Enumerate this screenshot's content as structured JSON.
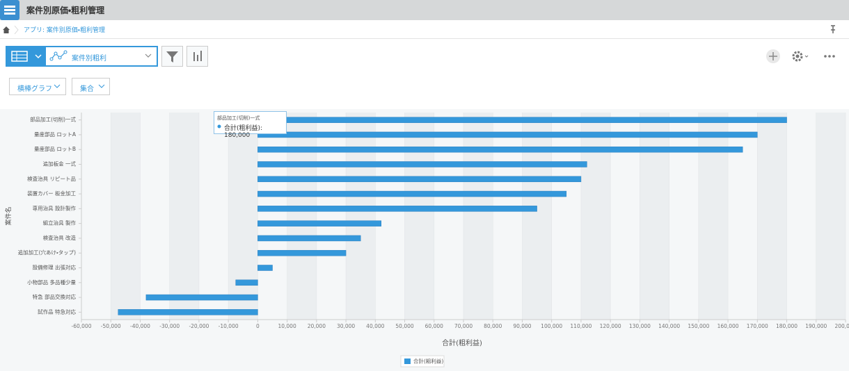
{
  "header": {
    "title": "案件別原価・粗利管理"
  },
  "breadcrumb": {
    "text": "アプリ: 案件別原価・粗利管理"
  },
  "toolbar": {
    "view_name": "案件別粗利",
    "chart_type": "横棒グラフ",
    "aggregation": "集合"
  },
  "tooltip": {
    "category": "部品加工(切削)一式",
    "text": "合計(粗利益): 180,000"
  },
  "chart_data": {
    "type": "bar",
    "orientation": "horizontal",
    "xlabel": "合計(粗利益)",
    "ylabel": "案件名",
    "categories": [
      "部品加工(切削)一式",
      "量産部品 ロットA",
      "量産部品 ロットB",
      "追加板金 一式",
      "検査治具 リピート品",
      "装置カバー 板金加工",
      "専用治具 設計製作",
      "組立治具 製作",
      "検査治具 改造",
      "追加加工(穴あけ・タップ)",
      "設備修理 出張対応",
      "小物部品 多品種少量",
      "特急 部品交換対応",
      "試作品 特急対応"
    ],
    "series": [
      {
        "name": "合計(粗利益)",
        "color": "#3498db",
        "values": [
          180000,
          170000,
          165000,
          112000,
          110000,
          105000,
          95000,
          42000,
          35000,
          30000,
          5000,
          -7500,
          -38000,
          -47500
        ]
      }
    ],
    "xlim": [
      -60000,
      200000
    ],
    "xticks": [
      {
        "value": -60000,
        "label": "-60,000"
      },
      {
        "value": -50000,
        "label": "-50,000"
      },
      {
        "value": -40000,
        "label": "-40,000"
      },
      {
        "value": -30000,
        "label": "-30,000"
      },
      {
        "value": -20000,
        "label": "-20,000"
      },
      {
        "value": -10000,
        "label": "-10,000"
      },
      0,
      {
        "value": 10000,
        "label": "10,000"
      },
      {
        "value": 20000,
        "label": "20,000"
      },
      {
        "value": 30000,
        "label": "30,000"
      },
      {
        "value": 40000,
        "label": "40,000"
      },
      {
        "value": 50000,
        "label": "50,000"
      },
      {
        "value": 60000,
        "label": "60,000"
      },
      {
        "value": 70000,
        "label": "70,000"
      },
      {
        "value": 80000,
        "label": "80,000"
      },
      {
        "value": 90000,
        "label": "90,000"
      },
      {
        "value": 100000,
        "label": "100,000"
      },
      {
        "value": 110000,
        "label": "110,000"
      },
      {
        "value": 120000,
        "label": "120,000"
      },
      {
        "value": 130000,
        "label": "130,000"
      },
      {
        "value": 140000,
        "label": "140,000"
      },
      {
        "value": 150000,
        "label": "150,000"
      },
      {
        "value": 160000,
        "label": "160,000"
      },
      {
        "value": 170000,
        "label": "170,000"
      },
      {
        "value": 180000,
        "label": "180,000"
      },
      {
        "value": 190000,
        "label": "190,000"
      },
      {
        "value": 200000,
        "label": "200,000"
      }
    ],
    "grid": true,
    "legend": "bottom"
  }
}
